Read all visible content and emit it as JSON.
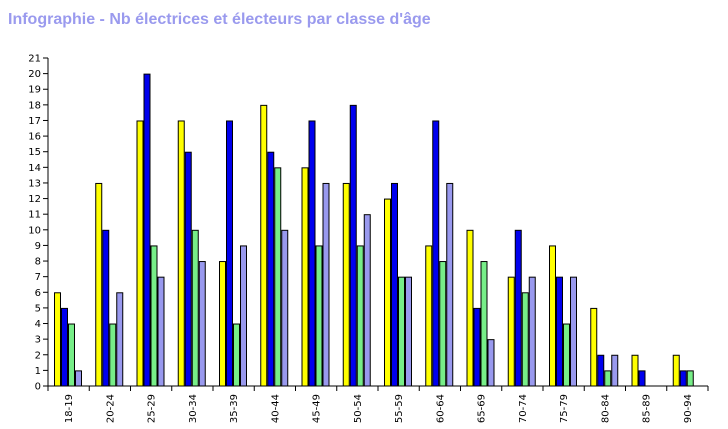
{
  "chart_data": {
    "type": "bar",
    "title": "Infographie - Nb électrices et électeurs par classe d'âge",
    "xlabel": "",
    "ylabel": "",
    "ylim": [
      0,
      21
    ],
    "yticks": [
      0,
      1,
      2,
      3,
      4,
      5,
      6,
      7,
      8,
      9,
      10,
      11,
      12,
      13,
      14,
      15,
      16,
      17,
      18,
      19,
      20,
      21
    ],
    "grid": false,
    "legend": "none",
    "categories": [
      "18-19",
      "20-24",
      "25-29",
      "30-34",
      "35-39",
      "40-44",
      "45-49",
      "50-54",
      "55-59",
      "60-64",
      "65-69",
      "70-74",
      "75-79",
      "80-84",
      "85-89",
      "90-94"
    ],
    "series": [
      {
        "color": "#ffff00",
        "values": [
          6,
          13,
          17,
          17,
          8,
          18,
          14,
          13,
          12,
          9,
          10,
          7,
          9,
          5,
          2,
          2
        ]
      },
      {
        "color": "#0000ee",
        "values": [
          5,
          10,
          20,
          15,
          17,
          15,
          17,
          18,
          13,
          17,
          5,
          10,
          7,
          2,
          1,
          1
        ]
      },
      {
        "color": "#77ee88",
        "values": [
          4,
          4,
          9,
          10,
          4,
          14,
          9,
          9,
          7,
          8,
          8,
          6,
          4,
          1,
          0,
          1
        ]
      },
      {
        "color": "#9999ee",
        "values": [
          1,
          6,
          7,
          8,
          9,
          10,
          13,
          11,
          7,
          13,
          3,
          7,
          7,
          2,
          0,
          0
        ]
      }
    ]
  }
}
